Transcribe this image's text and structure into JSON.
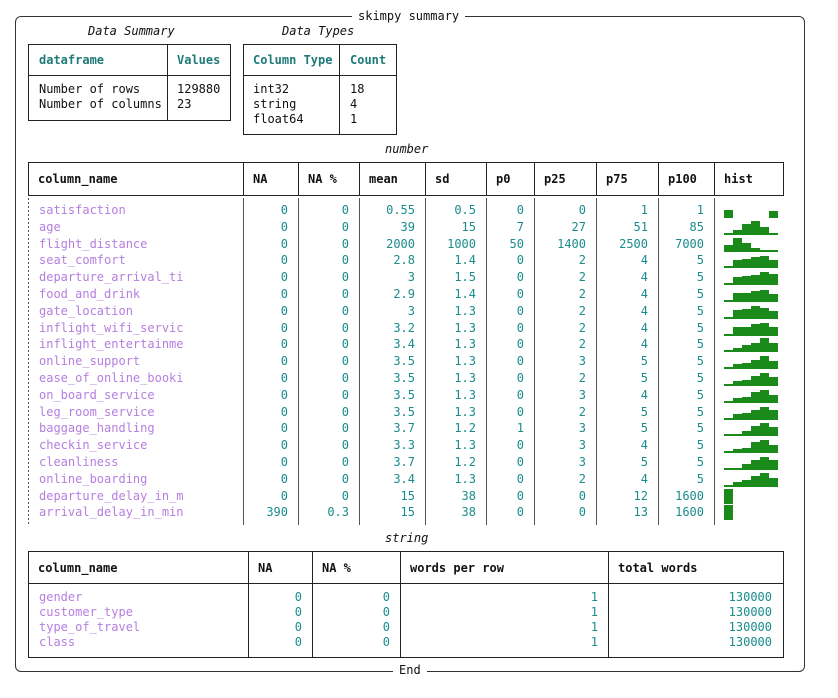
{
  "title": "skimpy summary",
  "end_label": "End",
  "data_summary": {
    "caption": "Data Summary",
    "headers": [
      "dataframe",
      "Values"
    ],
    "labels": "Number of rows\nNumber of columns",
    "values": "129880\n23"
  },
  "data_types": {
    "caption": "Data Types",
    "headers": [
      "Column Type",
      "Count"
    ],
    "types": "int32\nstring\nfloat64",
    "counts": "18\n4\n1"
  },
  "number": {
    "caption": "number",
    "headers": [
      "column_name",
      "NA",
      "NA %",
      "mean",
      "sd",
      "p0",
      "p25",
      "p75",
      "p100",
      "hist"
    ],
    "rows": [
      {
        "name": "satisfaction",
        "na": "0",
        "na_pct": "0",
        "mean": "0.55",
        "sd": "0.5",
        "p0": "0",
        "p25": "0",
        "p75": "1",
        "p100": "1",
        "hist": [
          0.55,
          0,
          0,
          0,
          0,
          0.45
        ]
      },
      {
        "name": "age",
        "na": "0",
        "na_pct": "0",
        "mean": "39",
        "sd": "15",
        "p0": "7",
        "p25": "27",
        "p75": "51",
        "p100": "85",
        "hist": [
          0.1,
          0.35,
          0.7,
          0.9,
          0.55,
          0.15
        ]
      },
      {
        "name": "flight_distance",
        "na": "0",
        "na_pct": "0",
        "mean": "2000",
        "sd": "1000",
        "p0": "50",
        "p25": "1400",
        "p75": "2500",
        "p100": "7000",
        "hist": [
          0.45,
          0.9,
          0.55,
          0.25,
          0.1,
          0.05
        ]
      },
      {
        "name": "seat_comfort",
        "na": "0",
        "na_pct": "0",
        "mean": "2.8",
        "sd": "1.4",
        "p0": "0",
        "p25": "2",
        "p75": "4",
        "p100": "5",
        "hist": [
          0.1,
          0.55,
          0.6,
          0.75,
          0.85,
          0.55
        ]
      },
      {
        "name": "departure_arrival_ti",
        "na": "0",
        "na_pct": "0",
        "mean": "3",
        "sd": "1.5",
        "p0": "0",
        "p25": "2",
        "p75": "4",
        "p100": "5",
        "hist": [
          0.15,
          0.55,
          0.6,
          0.7,
          0.85,
          0.75
        ]
      },
      {
        "name": "food_and_drink",
        "na": "0",
        "na_pct": "0",
        "mean": "2.9",
        "sd": "1.4",
        "p0": "0",
        "p25": "2",
        "p75": "4",
        "p100": "5",
        "hist": [
          0.1,
          0.6,
          0.6,
          0.75,
          0.8,
          0.55
        ]
      },
      {
        "name": "gate_location",
        "na": "0",
        "na_pct": "0",
        "mean": "3",
        "sd": "1.3",
        "p0": "0",
        "p25": "2",
        "p75": "4",
        "p100": "5",
        "hist": [
          0.05,
          0.6,
          0.65,
          0.85,
          0.75,
          0.5
        ]
      },
      {
        "name": "inflight_wifi_servic",
        "na": "0",
        "na_pct": "0",
        "mean": "3.2",
        "sd": "1.3",
        "p0": "0",
        "p25": "2",
        "p75": "4",
        "p100": "5",
        "hist": [
          0.05,
          0.55,
          0.55,
          0.75,
          0.85,
          0.6
        ]
      },
      {
        "name": "inflight_entertainme",
        "na": "0",
        "na_pct": "0",
        "mean": "3.4",
        "sd": "1.3",
        "p0": "0",
        "p25": "2",
        "p75": "4",
        "p100": "5",
        "hist": [
          0.1,
          0.3,
          0.5,
          0.65,
          0.95,
          0.65
        ]
      },
      {
        "name": "online_support",
        "na": "0",
        "na_pct": "0",
        "mean": "3.5",
        "sd": "1.3",
        "p0": "0",
        "p25": "3",
        "p75": "5",
        "p100": "5",
        "hist": [
          0.05,
          0.35,
          0.4,
          0.6,
          0.85,
          0.55
        ]
      },
      {
        "name": "ease_of_online_booki",
        "na": "0",
        "na_pct": "0",
        "mean": "3.5",
        "sd": "1.3",
        "p0": "0",
        "p25": "2",
        "p75": "5",
        "p100": "5",
        "hist": [
          0.05,
          0.35,
          0.4,
          0.65,
          0.85,
          0.6
        ]
      },
      {
        "name": "on_board_service",
        "na": "0",
        "na_pct": "0",
        "mean": "3.5",
        "sd": "1.3",
        "p0": "0",
        "p25": "3",
        "p75": "4",
        "p100": "5",
        "hist": [
          0.05,
          0.35,
          0.4,
          0.7,
          0.85,
          0.55
        ]
      },
      {
        "name": "leg_room_service",
        "na": "0",
        "na_pct": "0",
        "mean": "3.5",
        "sd": "1.3",
        "p0": "0",
        "p25": "2",
        "p75": "5",
        "p100": "5",
        "hist": [
          0.05,
          0.35,
          0.45,
          0.65,
          0.85,
          0.65
        ]
      },
      {
        "name": "baggage_handling",
        "na": "0",
        "na_pct": "0",
        "mean": "3.7",
        "sd": "1.2",
        "p0": "1",
        "p25": "3",
        "p75": "5",
        "p100": "5",
        "hist": [
          0.05,
          0.15,
          0.35,
          0.7,
          0.9,
          0.65
        ]
      },
      {
        "name": "checkin_service",
        "na": "0",
        "na_pct": "0",
        "mean": "3.3",
        "sd": "1.3",
        "p0": "0",
        "p25": "3",
        "p75": "4",
        "p100": "5",
        "hist": [
          0.05,
          0.3,
          0.35,
          0.75,
          0.85,
          0.55
        ]
      },
      {
        "name": "cleanliness",
        "na": "0",
        "na_pct": "0",
        "mean": "3.7",
        "sd": "1.2",
        "p0": "0",
        "p25": "3",
        "p75": "5",
        "p100": "5",
        "hist": [
          0.05,
          0.15,
          0.4,
          0.65,
          0.9,
          0.65
        ]
      },
      {
        "name": "online_boarding",
        "na": "0",
        "na_pct": "0",
        "mean": "3.4",
        "sd": "1.3",
        "p0": "0",
        "p25": "2",
        "p75": "4",
        "p100": "5",
        "hist": [
          0.05,
          0.35,
          0.45,
          0.7,
          0.9,
          0.6
        ]
      },
      {
        "name": "departure_delay_in_m",
        "na": "0",
        "na_pct": "0",
        "mean": "15",
        "sd": "38",
        "p0": "0",
        "p25": "0",
        "p75": "12",
        "p100": "1600",
        "hist": [
          1,
          0,
          0,
          0,
          0,
          0
        ]
      },
      {
        "name": "arrival_delay_in_min",
        "na": "390",
        "na_pct": "0.3",
        "mean": "15",
        "sd": "38",
        "p0": "0",
        "p25": "0",
        "p75": "13",
        "p100": "1600",
        "hist": [
          1,
          0,
          0,
          0,
          0,
          0
        ]
      }
    ]
  },
  "string": {
    "caption": "string",
    "headers": [
      "column_name",
      "NA",
      "NA %",
      "words per row",
      "total words"
    ],
    "rows": [
      {
        "name": "gender",
        "na": "0",
        "na_pct": "0",
        "wpr": "1",
        "total": "130000"
      },
      {
        "name": "customer_type",
        "na": "0",
        "na_pct": "0",
        "wpr": "1",
        "total": "130000"
      },
      {
        "name": "type_of_travel",
        "na": "0",
        "na_pct": "0",
        "wpr": "1",
        "total": "130000"
      },
      {
        "name": "class",
        "na": "0",
        "na_pct": "0",
        "wpr": "1",
        "total": "130000"
      }
    ]
  },
  "colors": {
    "name": "#b57ee0",
    "number": "#1a8c8c",
    "hist": "#1a8a1a",
    "header_teal": "#1f7a7a"
  }
}
